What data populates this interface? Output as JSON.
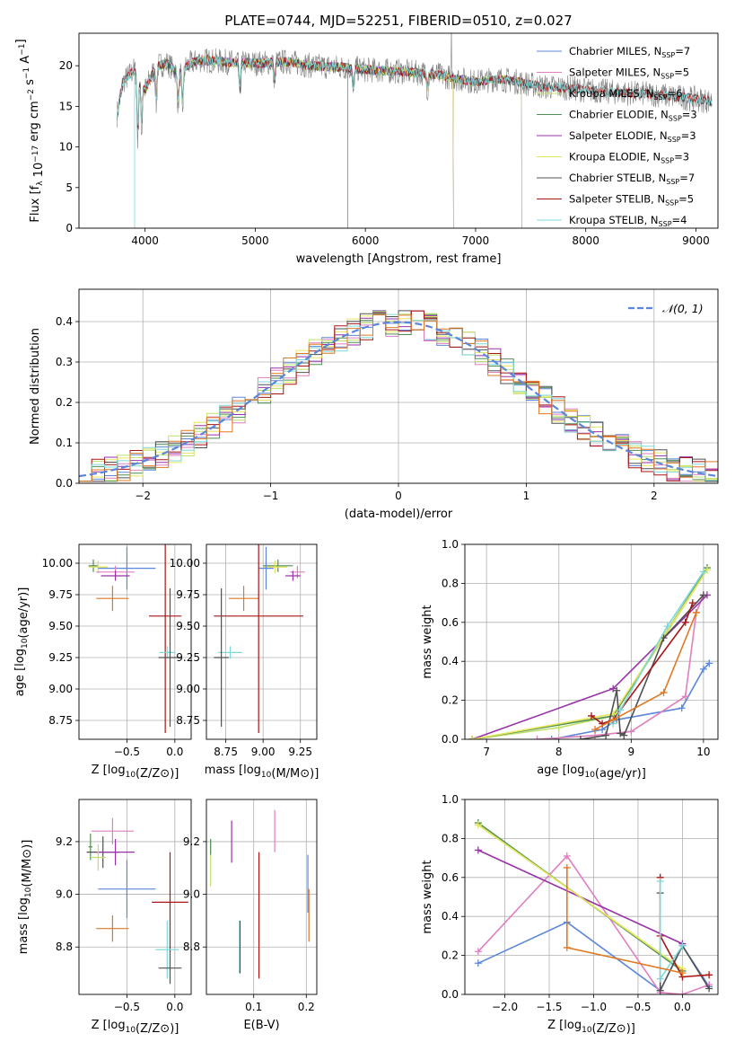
{
  "figure_title": "PLATE=0744, MJD=52251, FIBERID=0510, z=0.027",
  "colors": {
    "Chabrier MILES": "#5b86d9",
    "Salpeter MILES": "#e07fc0",
    "Kroupa MILES": "#bfe06a",
    "Chabrier ELODIE": "#4f8f55",
    "Salpeter ELODIE": "#9932a8",
    "Kroupa ELODIE": "#e6e65a",
    "Chabrier STELIB": "#505050",
    "Salpeter STELIB": "#a81616",
    "Kroupa STELIB": "#7fd8d8",
    "orange": "#e07822"
  },
  "chart_data": [
    {
      "type": "line",
      "title": "PLATE=0744, MJD=52251, FIBERID=0510, z=0.027",
      "xlabel": "wavelength [Angstrom, rest frame]",
      "ylabel": "Flux [f_λ 10^-17 erg cm^-2 s^-1 A^-1]",
      "xlim": [
        3400,
        9200
      ],
      "ylim": [
        0,
        24
      ],
      "xticks": [
        "4000",
        "5000",
        "6000",
        "7000",
        "8000",
        "9000"
      ],
      "yticks": [
        "0",
        "5",
        "10",
        "15",
        "20"
      ],
      "legend_position": "top-right",
      "legend": [
        {
          "label": "Chabrier MILES, N",
          "sub": "SSP",
          "tail": "=7",
          "color": "#5b86d9"
        },
        {
          "label": "Salpeter MILES, N",
          "sub": "SSP",
          "tail": "=5",
          "color": "#e07fc0"
        },
        {
          "label": "Kroupa MILES, N",
          "sub": "SSP",
          "tail": "=6",
          "color": "#bfe06a"
        },
        {
          "label": "Chabrier ELODIE, N",
          "sub": "SSP",
          "tail": "=3",
          "color": "#4f8f55"
        },
        {
          "label": "Salpeter ELODIE, N",
          "sub": "SSP",
          "tail": "=3",
          "color": "#9932a8"
        },
        {
          "label": "Kroupa ELODIE, N",
          "sub": "SSP",
          "tail": "=3",
          "color": "#e6e65a"
        },
        {
          "label": "Chabrier STELIB, N",
          "sub": "SSP",
          "tail": "=7",
          "color": "#505050"
        },
        {
          "label": "Salpeter STELIB, N",
          "sub": "SSP",
          "tail": "=5",
          "color": "#a81616"
        },
        {
          "label": "Kroupa STELIB, N",
          "sub": "SSP",
          "tail": "=4",
          "color": "#7fd8d8"
        }
      ],
      "data_spectrum": {
        "x": [
          3745,
          3800,
          3900,
          4000,
          4100,
          4200,
          4300,
          4400,
          4500,
          4700,
          5000,
          5300,
          5500,
          5800,
          6000,
          6300,
          6600,
          6800,
          7000,
          7200,
          7400,
          7600,
          7800,
          8000,
          8300,
          8600,
          8800,
          9000,
          9150
        ],
        "y": [
          14,
          18,
          19.5,
          17,
          20,
          20.3,
          19,
          20.2,
          20.7,
          20.5,
          20.3,
          20.5,
          20,
          19.8,
          19.5,
          19.3,
          19,
          18.5,
          18,
          18.4,
          18,
          17.4,
          17.3,
          17,
          16.7,
          16.5,
          16.2,
          15.9,
          15.6
        ]
      },
      "models": [
        {
          "name": "Chabrier MILES",
          "x_range": [
            3745,
            7420
          ],
          "color": "#5b86d9"
        },
        {
          "name": "Salpeter MILES",
          "x_range": [
            3745,
            7420
          ],
          "color": "#e07fc0"
        },
        {
          "name": "Kroupa MILES",
          "x_range": [
            3745,
            7420
          ],
          "color": "#bfe06a"
        },
        {
          "name": "Chabrier ELODIE",
          "x_range": [
            4000,
            6800
          ],
          "color": "#4f8f55"
        },
        {
          "name": "Salpeter ELODIE",
          "x_range": [
            4000,
            6800
          ],
          "color": "#9932a8"
        },
        {
          "name": "Kroupa ELODIE",
          "x_range": [
            4000,
            6800
          ],
          "color": "#e6e65a"
        },
        {
          "name": "Chabrier STELIB",
          "x_range": [
            3745,
            9150
          ],
          "color": "#505050"
        },
        {
          "name": "Salpeter STELIB",
          "x_range": [
            3745,
            9150
          ],
          "color": "#a81616"
        },
        {
          "name": "Kroupa STELIB",
          "x_range": [
            3745,
            9150
          ],
          "color": "#7fd8d8"
        }
      ]
    },
    {
      "type": "line",
      "xlabel": "(data-model)/error",
      "ylabel": "Normed distribution",
      "xlim": [
        -2.5,
        2.5
      ],
      "ylim": [
        0,
        0.48
      ],
      "xticks": [
        "−2",
        "−1",
        "0",
        "1",
        "2"
      ],
      "yticks": [
        "0.0",
        "0.1",
        "0.2",
        "0.3",
        "0.4"
      ],
      "grid": true,
      "legend_position": "top-right",
      "legend": [
        {
          "label": "𝒩(0, 1)",
          "color": "#5b86d9",
          "dashed": true
        }
      ],
      "bin_width": 0.1,
      "bin_start": -2.5
    },
    {
      "type": "scatter",
      "xlabel": "Z [log10(Z/Z⊙)]",
      "ylabel": "age  [log10(age/yr)]",
      "xlim": [
        -1.0,
        0.17
      ],
      "ylim": [
        8.6,
        10.15
      ],
      "xticks": [
        "−0.5",
        "0.0"
      ],
      "yticks": [
        "8.75",
        "9.00",
        "9.25",
        "9.50",
        "9.75",
        "10.00"
      ],
      "grid": true,
      "points": [
        {
          "x": -0.85,
          "y": 9.98,
          "xerr": 0.05,
          "yerr": 0.05,
          "color": "#4f8f55"
        },
        {
          "x": -0.8,
          "y": 9.97,
          "xerr": 0.1,
          "yerr": 0.05,
          "color": "#bfe06a"
        },
        {
          "x": -0.8,
          "y": 9.97,
          "xerr": 0.1,
          "yerr": 0.04,
          "color": "#e6e65a"
        },
        {
          "x": -0.5,
          "y": 9.96,
          "xerr": 0.3,
          "yerr": 0.17,
          "color": "#5b86d9"
        },
        {
          "x": -0.62,
          "y": 9.93,
          "xerr": 0.2,
          "yerr": 0.05,
          "color": "#e07fc0"
        },
        {
          "x": -0.62,
          "y": 9.9,
          "xerr": 0.15,
          "yerr": 0.04,
          "color": "#9932a8"
        },
        {
          "x": -0.65,
          "y": 9.72,
          "xerr": 0.17,
          "yerr": 0.1,
          "color": "#e07822"
        },
        {
          "x": -0.1,
          "y": 9.58,
          "xerr": 0.17,
          "yerr": 0.93,
          "color": "#a81616"
        },
        {
          "x": -0.08,
          "y": 9.29,
          "xerr": 0.08,
          "yerr": 0.05,
          "color": "#7fd8d8"
        },
        {
          "x": -0.05,
          "y": 9.25,
          "xerr": 0.12,
          "yerr": 0.55,
          "color": "#505050"
        }
      ]
    },
    {
      "type": "scatter",
      "xlabel": "mass [log10(M/M⊙)]",
      "xlim": [
        8.62,
        9.36
      ],
      "ylim": [
        8.6,
        10.15
      ],
      "xticks": [
        "8.75",
        "9.00",
        "9.25"
      ],
      "yticks": [
        "8.75",
        "9.00",
        "9.25",
        "9.50",
        "9.75",
        "10.00"
      ],
      "grid": true,
      "points": [
        {
          "x": 9.1,
          "y": 9.98,
          "xerr": 0.1,
          "yerr": 0.05,
          "color": "#4f8f55"
        },
        {
          "x": 9.08,
          "y": 9.97,
          "xerr": 0.08,
          "yerr": 0.05,
          "color": "#bfe06a"
        },
        {
          "x": 9.08,
          "y": 9.97,
          "xerr": 0.08,
          "yerr": 0.04,
          "color": "#e6e65a"
        },
        {
          "x": 9.02,
          "y": 9.96,
          "xerr": 0.05,
          "yerr": 0.17,
          "color": "#5b86d9"
        },
        {
          "x": 9.23,
          "y": 9.93,
          "xerr": 0.05,
          "yerr": 0.05,
          "color": "#e07fc0"
        },
        {
          "x": 9.2,
          "y": 9.9,
          "xerr": 0.05,
          "yerr": 0.04,
          "color": "#9932a8"
        },
        {
          "x": 8.87,
          "y": 9.72,
          "xerr": 0.1,
          "yerr": 0.1,
          "color": "#e07822"
        },
        {
          "x": 8.97,
          "y": 9.58,
          "xerr": 0.3,
          "yerr": 0.93,
          "color": "#a81616"
        },
        {
          "x": 8.78,
          "y": 9.29,
          "xerr": 0.08,
          "yerr": 0.05,
          "color": "#7fd8d8"
        },
        {
          "x": 8.72,
          "y": 9.25,
          "xerr": 0.05,
          "yerr": 0.55,
          "color": "#505050"
        }
      ]
    },
    {
      "type": "line",
      "xlabel": "age  [log10(age/yr)]",
      "ylabel": "mass weight",
      "xlim": [
        6.7,
        10.2
      ],
      "ylim": [
        0,
        1.0
      ],
      "xticks": [
        "7",
        "8",
        "9",
        "10"
      ],
      "yticks": [
        "0.0",
        "0.2",
        "0.4",
        "0.6",
        "0.8",
        "1.0"
      ],
      "grid": true,
      "series": [
        {
          "name": "Chabrier MILES",
          "color": "#5b86d9",
          "x": [
            7.9,
            8.6,
            8.8,
            9.7,
            10.0,
            10.08
          ],
          "y": [
            0.0,
            0.05,
            0.1,
            0.16,
            0.36,
            0.39
          ]
        },
        {
          "name": "Salpeter MILES",
          "color": "#e07fc0",
          "x": [
            7.7,
            8.5,
            9.0,
            9.75,
            9.9,
            10.0
          ],
          "y": [
            0.0,
            0.02,
            0.04,
            0.22,
            0.65,
            0.74
          ]
        },
        {
          "name": "Kroupa MILES",
          "color": "#bfe06a",
          "x": [
            6.8,
            8.0,
            8.75,
            9.5,
            10.05
          ],
          "y": [
            0.0,
            0.06,
            0.12,
            0.55,
            0.87
          ]
        },
        {
          "name": "Chabrier ELODIE",
          "color": "#4f8f55",
          "x": [
            6.8,
            8.75,
            10.05
          ],
          "y": [
            0.0,
            0.12,
            0.88
          ]
        },
        {
          "name": "Salpeter ELODIE",
          "color": "#9932a8",
          "x": [
            6.8,
            8.75,
            10.05
          ],
          "y": [
            0.0,
            0.26,
            0.74
          ]
        },
        {
          "name": "Kroupa ELODIE",
          "color": "#e6e65a",
          "x": [
            6.8,
            8.75,
            10.05
          ],
          "y": [
            0.0,
            0.13,
            0.87
          ]
        },
        {
          "name": "Chabrier STELIB",
          "color": "#505050",
          "x": [
            8.3,
            8.65,
            8.8,
            8.85,
            8.9,
            9.45,
            10.0
          ],
          "y": [
            0.0,
            0.02,
            0.25,
            0.03,
            0.02,
            0.52,
            0.74
          ]
        },
        {
          "name": "Salpeter STELIB",
          "color": "#a81616",
          "x": [
            8.45,
            8.6,
            8.75,
            9.75,
            9.85
          ],
          "y": [
            0.12,
            0.08,
            0.1,
            0.6,
            0.7
          ]
        },
        {
          "name": "Kroupa STELIB",
          "color": "#7fd8d8",
          "x": [
            8.75,
            8.85,
            9.5,
            10.0
          ],
          "y": [
            0.08,
            0.15,
            0.58,
            0.86
          ]
        },
        {
          "name": "orange",
          "color": "#e07822",
          "x": [
            8.5,
            8.75,
            9.45,
            9.9
          ],
          "y": [
            0.05,
            0.1,
            0.24,
            0.65
          ]
        }
      ]
    },
    {
      "type": "scatter",
      "xlabel": "Z [log10(Z/Z⊙)]",
      "ylabel": "mass [log10(M/M⊙)]",
      "xlim": [
        -1.0,
        0.17
      ],
      "ylim": [
        8.62,
        9.36
      ],
      "xticks": [
        "−0.5",
        "0.0"
      ],
      "yticks": [
        "8.8",
        "9.0",
        "9.2"
      ],
      "grid": true,
      "points": [
        {
          "x": -0.65,
          "y": 9.24,
          "xerr": 0.22,
          "yerr": 0.05,
          "color": "#e07fc0"
        },
        {
          "x": -0.88,
          "y": 9.18,
          "xerr": 0.02,
          "yerr": 0.05,
          "color": "#4f8f55"
        },
        {
          "x": -0.75,
          "y": 9.16,
          "xerr": 0.17,
          "yerr": 0.06,
          "color": "#505050"
        },
        {
          "x": -0.62,
          "y": 9.16,
          "xerr": 0.2,
          "yerr": 0.05,
          "color": "#9932a8"
        },
        {
          "x": -0.8,
          "y": 9.14,
          "xerr": 0.08,
          "yerr": 0.05,
          "color": "#bfe06a"
        },
        {
          "x": -0.5,
          "y": 9.02,
          "xerr": 0.3,
          "yerr": 0.11,
          "color": "#5b86d9"
        },
        {
          "x": -0.05,
          "y": 8.97,
          "xerr": 0.19,
          "yerr": 0.19,
          "color": "#a81616"
        },
        {
          "x": -0.65,
          "y": 8.87,
          "xerr": 0.17,
          "yerr": 0.05,
          "color": "#e07822"
        },
        {
          "x": -0.08,
          "y": 8.79,
          "xerr": 0.12,
          "yerr": 0.11,
          "color": "#7fd8d8"
        },
        {
          "x": -0.05,
          "y": 8.72,
          "xerr": 0.12,
          "yerr": 0.06,
          "color": "#505050"
        }
      ]
    },
    {
      "type": "scatter",
      "xlabel": "E(B-V)",
      "xlim": [
        0.01,
        0.22
      ],
      "ylim": [
        8.62,
        9.36
      ],
      "xticks": [
        "0.1",
        "0.2"
      ],
      "yticks": [
        "8.8",
        "9.0",
        "9.2"
      ],
      "grid": true,
      "points": [
        {
          "x": 0.018,
          "y": 9.12,
          "yerr": 0.09,
          "color": "#bfe06a"
        },
        {
          "x": 0.018,
          "y": 9.18,
          "yerr": 0.03,
          "color": "#4f8f55"
        },
        {
          "x": 0.058,
          "y": 9.2,
          "yerr": 0.08,
          "color": "#9932a8"
        },
        {
          "x": 0.073,
          "y": 8.8,
          "yerr": 0.1,
          "color": "#7fd8d8"
        },
        {
          "x": 0.074,
          "y": 8.8,
          "yerr": 0.1,
          "color": "#505050"
        },
        {
          "x": 0.11,
          "y": 8.92,
          "yerr": 0.24,
          "color": "#a81616"
        },
        {
          "x": 0.14,
          "y": 9.24,
          "yerr": 0.08,
          "color": "#e07fc0"
        },
        {
          "x": 0.203,
          "y": 9.04,
          "yerr": 0.11,
          "color": "#5b86d9"
        },
        {
          "x": 0.205,
          "y": 8.92,
          "yerr": 0.1,
          "color": "#e07822"
        }
      ]
    },
    {
      "type": "line",
      "xlabel": "Z [log10(Z/Z⊙)]",
      "ylabel": "mass weight",
      "xlim": [
        -2.45,
        0.4
      ],
      "ylim": [
        0,
        1.0
      ],
      "xticks": [
        "−2.0",
        "−1.5",
        "−1.0",
        "−0.5",
        "0.0"
      ],
      "yticks": [
        "0.0",
        "0.2",
        "0.4",
        "0.6",
        "0.8",
        "1.0"
      ],
      "grid": true,
      "series": [
        {
          "name": "Chabrier MILES",
          "color": "#5b86d9",
          "x": [
            -2.3,
            -1.3,
            -0.25,
            0.0,
            0.3
          ],
          "y": [
            0.16,
            0.37,
            0.02,
            0.25,
            0.04
          ]
        },
        {
          "name": "Salpeter MILES",
          "color": "#e07fc0",
          "x": [
            -2.3,
            -1.3,
            -0.25,
            0.0,
            0.3
          ],
          "y": [
            0.22,
            0.71,
            0.01,
            0.0,
            0.05
          ]
        },
        {
          "name": "Kroupa MILES",
          "color": "#bfe06a",
          "x": [
            -2.3,
            0.0
          ],
          "y": [
            0.87,
            0.13
          ]
        },
        {
          "name": "Chabrier ELODIE",
          "color": "#4f8f55",
          "x": [
            -2.3,
            0.0
          ],
          "y": [
            0.88,
            0.12
          ]
        },
        {
          "name": "Salpeter ELODIE",
          "color": "#9932a8",
          "x": [
            -2.3,
            0.0
          ],
          "y": [
            0.74,
            0.26
          ]
        },
        {
          "name": "Kroupa ELODIE",
          "color": "#e6e65a",
          "x": [
            -2.3,
            0.0
          ],
          "y": [
            0.87,
            0.13
          ]
        },
        {
          "name": "Chabrier STELIB",
          "color": "#505050",
          "x": [
            -0.25,
            -0.25,
            0.0,
            0.3
          ],
          "y": [
            0.52,
            0.02,
            0.25,
            0.03
          ]
        },
        {
          "name": "Salpeter STELIB",
          "color": "#a81616",
          "x": [
            -0.25,
            -0.25,
            0.0,
            0.3
          ],
          "y": [
            0.6,
            0.3,
            0.09,
            0.1
          ]
        },
        {
          "name": "Kroupa STELIB",
          "color": "#7fd8d8",
          "x": [
            -0.25,
            -0.25,
            0.0
          ],
          "y": [
            0.58,
            0.08,
            0.25
          ]
        },
        {
          "name": "orange",
          "color": "#e07822",
          "x": [
            -1.3,
            -1.3,
            0.0
          ],
          "y": [
            0.65,
            0.24,
            0.11
          ]
        }
      ]
    }
  ]
}
